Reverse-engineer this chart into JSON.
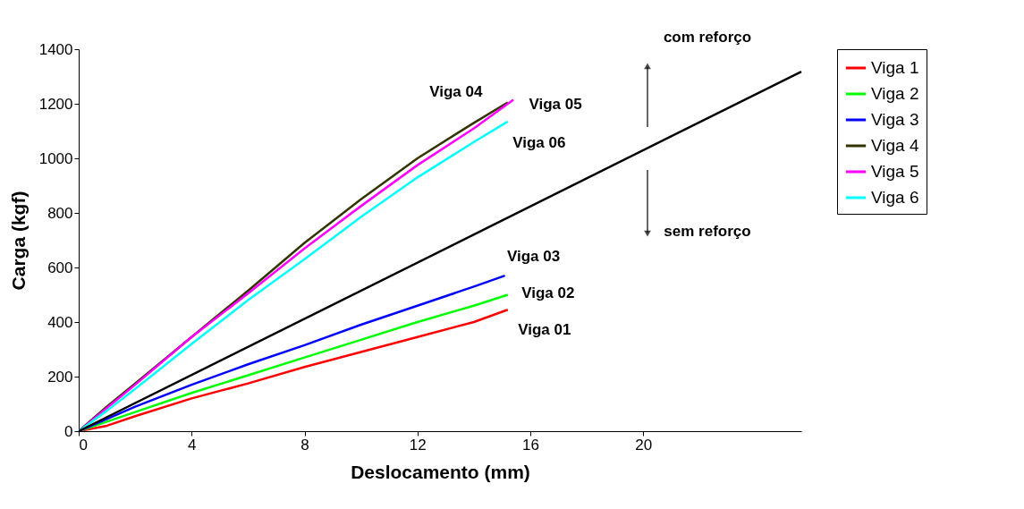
{
  "chart_data": {
    "type": "line",
    "xlabel": "Deslocamento (mm)",
    "ylabel": "Carga (kgf)",
    "xlim": [
      0,
      25.6
    ],
    "xticks": [
      0,
      4,
      8,
      12,
      16,
      20
    ],
    "ylim": [
      0,
      1400
    ],
    "yticks": [
      0,
      200,
      400,
      600,
      800,
      1000,
      1200,
      1400
    ],
    "grid": false,
    "legend": "right",
    "marker": "none",
    "line_style": "solid",
    "series": [
      {
        "name": "Viga 1",
        "color": "#ff0000",
        "x": [
          0,
          1,
          2,
          4,
          6,
          8,
          10,
          12,
          14,
          15.2
        ],
        "values": [
          0,
          20,
          55,
          120,
          175,
          235,
          290,
          345,
          400,
          445
        ]
      },
      {
        "name": "Viga 2",
        "color": "#00ff00",
        "x": [
          0,
          1,
          2,
          4,
          6,
          8,
          10,
          12,
          14,
          15.2
        ],
        "values": [
          0,
          35,
          70,
          140,
          205,
          270,
          335,
          400,
          460,
          500
        ]
      },
      {
        "name": "Viga 3",
        "color": "#0000ff",
        "x": [
          0,
          1,
          2,
          4,
          6,
          8,
          10,
          12,
          14,
          15.1
        ],
        "values": [
          0,
          45,
          90,
          170,
          245,
          315,
          390,
          460,
          530,
          570
        ]
      },
      {
        "name": "Viga 4",
        "color": "#333300",
        "x": [
          0,
          1,
          2,
          4,
          6,
          8,
          10,
          12,
          14,
          15.2
        ],
        "values": [
          0,
          90,
          175,
          345,
          515,
          690,
          850,
          1000,
          1130,
          1205
        ]
      },
      {
        "name": "Viga 5",
        "color": "#ff00ff",
        "x": [
          0,
          1,
          2,
          4,
          6,
          8,
          10,
          12,
          14,
          15.4
        ],
        "values": [
          0,
          85,
          170,
          345,
          505,
          670,
          825,
          975,
          1110,
          1215
        ]
      },
      {
        "name": "Viga 6",
        "color": "#00ffff",
        "x": [
          0,
          1,
          2,
          4,
          6,
          8,
          10,
          12,
          14,
          15.2
        ],
        "values": [
          0,
          75,
          155,
          320,
          480,
          630,
          785,
          930,
          1060,
          1135
        ]
      },
      {
        "color": "#000000",
        "x": [
          0,
          25.6
        ],
        "values": [
          0,
          1318
        ]
      }
    ],
    "annotations": [
      "Viga 01",
      "Viga 02",
      "Viga 03",
      "Viga 04",
      "Viga 05",
      "Viga 06",
      "com reforço",
      "sem reforço"
    ]
  }
}
